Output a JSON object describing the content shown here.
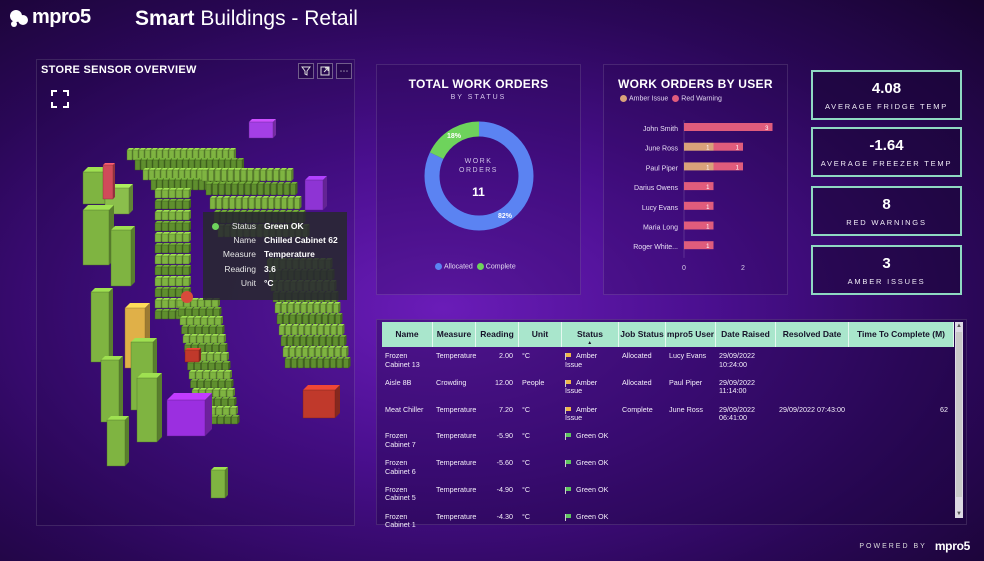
{
  "header": {
    "logo_text": "mpro5",
    "title_bold": "Smart",
    "title_rest": " Buildings - Retail"
  },
  "sensor_overview": {
    "title": "STORE SENSOR OVERVIEW",
    "tooltip": {
      "rows": [
        {
          "key": "Status",
          "value": "Green OK"
        },
        {
          "key": "Name",
          "value": "Chilled Cabinet 62"
        },
        {
          "key": "Measure",
          "value": "Temperature"
        },
        {
          "key": "Reading",
          "value": "3.6"
        },
        {
          "key": "Unit",
          "value": "°C"
        }
      ]
    }
  },
  "total_work_orders": {
    "title": "TOTAL WORK ORDERS",
    "subtitle": "BY STATUS",
    "center_label": "WORK ORDERS",
    "center_value": "11",
    "allocated_pct_label": "82%",
    "complete_pct_label": "18%",
    "legend": [
      {
        "label": "Allocated",
        "color": "#5b83f2"
      },
      {
        "label": "Complete",
        "color": "#6ed35c"
      }
    ]
  },
  "chart_data": {
    "type": "bar",
    "title": "WORK ORDERS BY USER",
    "orientation": "horizontal",
    "stacked": true,
    "categories": [
      "John Smith",
      "June Ross",
      "Paul Piper",
      "Darius Owens",
      "Lucy Evans",
      "Maria Long",
      "Roger White..."
    ],
    "series": [
      {
        "name": "Amber Issue",
        "color": "#d9a27a",
        "values": [
          0,
          1,
          1,
          0,
          0,
          0,
          0
        ]
      },
      {
        "name": "Red Warning",
        "color": "#e05c7c",
        "values": [
          3,
          1,
          1,
          1,
          1,
          1,
          1
        ]
      }
    ],
    "bar_labels": [
      [
        "",
        "3"
      ],
      [
        "1",
        "1"
      ],
      [
        "1",
        "1"
      ],
      [
        "",
        "1"
      ],
      [
        "",
        "1"
      ],
      [
        "",
        "1"
      ],
      [
        "",
        "1"
      ]
    ],
    "xticks": [
      "0",
      "2"
    ],
    "xlim": [
      0,
      3.1
    ],
    "legend_position": "top-left"
  },
  "kpis": [
    {
      "value": "4.08",
      "label": "AVERAGE FRIDGE TEMP"
    },
    {
      "value": "-1.64",
      "label": "AVERAGE FREEZER TEMP"
    },
    {
      "value": "8",
      "label": "RED WARNINGS"
    },
    {
      "value": "3",
      "label": "AMBER ISSUES"
    }
  ],
  "table": {
    "columns": [
      "Name",
      "Measure",
      "Reading",
      "Unit",
      "Status",
      "Job Status",
      "mpro5 User",
      "Date Raised",
      "Resolved Date",
      "Time To Complete (M)"
    ],
    "rows": [
      {
        "name": "Frozen Cabinet 13",
        "measure": "Temperature",
        "reading": "2.00",
        "unit": "°C",
        "status": "Amber Issue",
        "status_kind": "amber",
        "job_status": "Allocated",
        "user": "Lucy Evans",
        "date_raised": "29/09/2022 10:24:00",
        "resolved": "",
        "ttc": ""
      },
      {
        "name": "Aisle 8B",
        "measure": "Crowding",
        "reading": "12.00",
        "unit": "People",
        "status": "Amber Issue",
        "status_kind": "amber",
        "job_status": "Allocated",
        "user": "Paul Piper",
        "date_raised": "29/09/2022 11:14:00",
        "resolved": "",
        "ttc": ""
      },
      {
        "name": "Meat Chiller",
        "measure": "Temperature",
        "reading": "7.20",
        "unit": "°C",
        "status": "Amber Issue",
        "status_kind": "amber",
        "job_status": "Complete",
        "user": "June Ross",
        "date_raised": "29/09/2022 06:41:00",
        "resolved": "29/09/2022 07:43:00",
        "ttc": "62"
      },
      {
        "name": "Frozen Cabinet 7",
        "measure": "Temperature",
        "reading": "-5.90",
        "unit": "°C",
        "status": "Green OK",
        "status_kind": "green",
        "job_status": "",
        "user": "",
        "date_raised": "",
        "resolved": "",
        "ttc": ""
      },
      {
        "name": "Frozen Cabinet 6",
        "measure": "Temperature",
        "reading": "-5.60",
        "unit": "°C",
        "status": "Green OK",
        "status_kind": "green",
        "job_status": "",
        "user": "",
        "date_raised": "",
        "resolved": "",
        "ttc": ""
      },
      {
        "name": "Frozen Cabinet 5",
        "measure": "Temperature",
        "reading": "-4.90",
        "unit": "°C",
        "status": "Green OK",
        "status_kind": "green",
        "job_status": "",
        "user": "",
        "date_raised": "",
        "resolved": "",
        "ttc": ""
      },
      {
        "name": "Frozen Cabinet 1",
        "measure": "Temperature",
        "reading": "-4.30",
        "unit": "°C",
        "status": "Green OK",
        "status_kind": "green",
        "job_status": "",
        "user": "",
        "date_raised": "",
        "resolved": "",
        "ttc": ""
      }
    ]
  },
  "footer": {
    "powered_by": "POWERED BY",
    "powered_logo": "mpro5"
  },
  "icons": {
    "filter": "filter-icon",
    "focus_mode": "focus-mode-icon",
    "more_options": "more-options-icon",
    "sort": "sort-ascending-icon"
  }
}
